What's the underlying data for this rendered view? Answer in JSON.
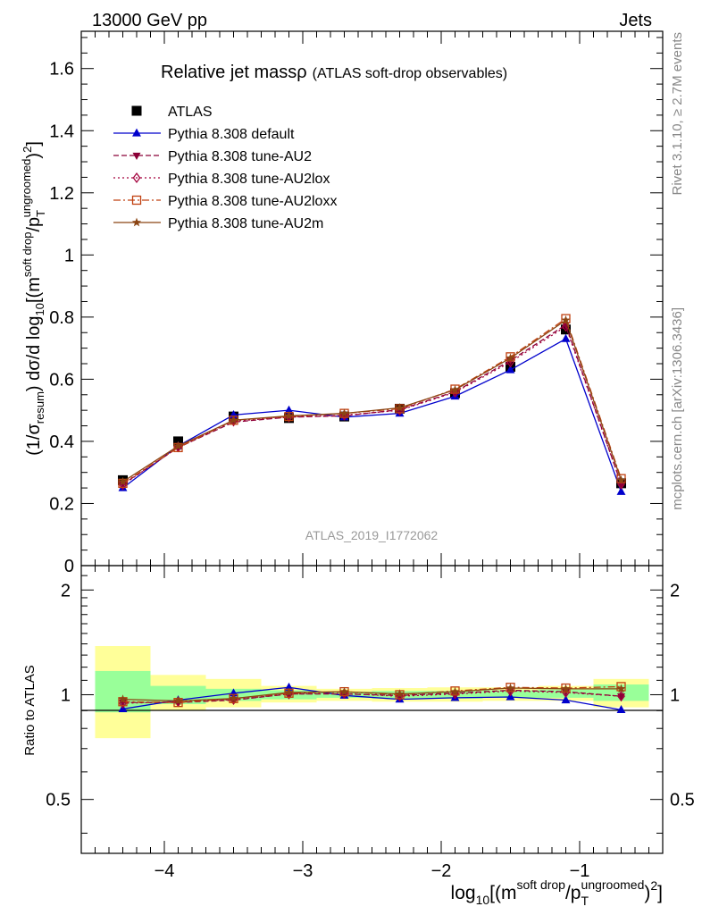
{
  "header": {
    "left": "13000 GeV pp",
    "right": "Jets"
  },
  "side_labels": {
    "rivet": "Rivet 3.1.10, ≥ 2.7M events",
    "mcplots": "mcplots.cern.ch [arXiv:1306.3436]"
  },
  "chart_data": [
    {
      "panel": "main",
      "type": "line",
      "title": "Relative jet massρ",
      "title_suffix": "(ATLAS soft-drop observables)",
      "watermark": "ATLAS_2019_I1772062",
      "ylabel": "(1/σresum) dσ/d log10[(msoft drop/pTungroomed)2]",
      "ylabel_parts": {
        "a": "(1/σ",
        "a_sub": "resum",
        "b": ") dσ/d log",
        "b_sub": "10",
        "c": "[(m",
        "c_sup": "soft drop",
        "d": "/p",
        "d_sub": "T",
        "d_sup": "ungroomed",
        "e": ")",
        "e_sup": "2",
        "f": "]"
      },
      "xlim": [
        -4.6,
        -0.4
      ],
      "ylim": [
        0,
        1.72
      ],
      "y_ticks": [
        0,
        0.2,
        0.4,
        0.6,
        0.8,
        1,
        1.2,
        1.4,
        1.6
      ],
      "y_tick_labels": [
        "0",
        "0.2",
        "0.4",
        "0.6",
        "0.8",
        "1",
        "1.2",
        "1.4",
        "1.6"
      ],
      "x": [
        -4.3,
        -3.9,
        -3.5,
        -3.1,
        -2.7,
        -2.3,
        -1.9,
        -1.5,
        -1.1,
        -0.7
      ],
      "legend_position": "top-left",
      "series": [
        {
          "name": "ATLAS",
          "color": "#000000",
          "marker": "square",
          "line": "none",
          "values": [
            0.275,
            0.4,
            0.48,
            0.475,
            0.48,
            0.505,
            0.555,
            0.64,
            0.76,
            0.265
          ]
        },
        {
          "name": "Pythia 8.308 default",
          "color": "#0000cc",
          "marker": "triangle-up",
          "line": "solid",
          "values": [
            0.25,
            0.385,
            0.485,
            0.5,
            0.478,
            0.49,
            0.545,
            0.63,
            0.73,
            0.238
          ]
        },
        {
          "name": "Pythia 8.308 tune-AU2",
          "color": "#8b0037",
          "marker": "triangle-down",
          "line": "dashed",
          "values": [
            0.262,
            0.38,
            0.462,
            0.478,
            0.482,
            0.502,
            0.56,
            0.66,
            0.775,
            0.262
          ]
        },
        {
          "name": "Pythia 8.308 tune-AU2lox",
          "color": "#a3003c",
          "marker": "diamond-open",
          "line": "dotted",
          "values": [
            0.26,
            0.382,
            0.465,
            0.478,
            0.484,
            0.5,
            0.558,
            0.655,
            0.77,
            0.262
          ]
        },
        {
          "name": "Pythia 8.308 tune-AU2loxx",
          "color": "#c04010",
          "marker": "square-open",
          "line": "dashdot",
          "values": [
            0.265,
            0.38,
            0.468,
            0.48,
            0.49,
            0.505,
            0.568,
            0.672,
            0.795,
            0.28
          ]
        },
        {
          "name": "Pythia 8.308 tune-AU2m",
          "color": "#8b4513",
          "marker": "star",
          "line": "solid",
          "values": [
            0.27,
            0.385,
            0.468,
            0.482,
            0.49,
            0.508,
            0.566,
            0.668,
            0.79,
            0.275
          ]
        }
      ]
    },
    {
      "panel": "ratio",
      "type": "line",
      "ylabel": "Ratio to ATLAS",
      "xlabel": "log10[(msoft drop/pTungroomed)2]",
      "xlabel_parts": {
        "a": "log",
        "a_sub": "10",
        "b": "[(m",
        "b_sup": "soft drop",
        "c": "/p",
        "c_sub": "T",
        "c_sup": "ungroomed",
        "d": ")",
        "d_sup": "2",
        "e": "]"
      },
      "xlim": [
        -4.6,
        -0.4
      ],
      "ylim": [
        0.35,
        2.35
      ],
      "x_ticks": [
        -4,
        -3,
        -2,
        -1
      ],
      "x_tick_labels": [
        "−4",
        "−3",
        "−2",
        "−1"
      ],
      "y_ticks": [
        0.5,
        1,
        2
      ],
      "y_tick_labels": [
        "0.5",
        "1",
        "2"
      ],
      "bins": [
        {
          "lo": -4.5,
          "hi": -4.1,
          "band1": [
            0.89,
            1.17
          ],
          "band2": [
            0.75,
            1.38
          ]
        },
        {
          "lo": -4.1,
          "hi": -3.7,
          "band1": [
            0.94,
            1.06
          ],
          "band2": [
            0.9,
            1.14
          ]
        },
        {
          "lo": -3.7,
          "hi": -3.3,
          "band1": [
            0.96,
            1.04
          ],
          "band2": [
            0.92,
            1.11
          ]
        },
        {
          "lo": -3.3,
          "hi": -2.9,
          "band1": [
            0.97,
            1.03
          ],
          "band2": [
            0.95,
            1.06
          ]
        },
        {
          "lo": -2.9,
          "hi": -2.5,
          "band1": [
            0.98,
            1.02
          ],
          "band2": [
            0.96,
            1.04
          ]
        },
        {
          "lo": -2.5,
          "hi": -2.1,
          "band1": [
            0.975,
            1.025
          ],
          "band2": [
            0.955,
            1.045
          ]
        },
        {
          "lo": -2.1,
          "hi": -1.7,
          "band1": [
            0.975,
            1.025
          ],
          "band2": [
            0.955,
            1.05
          ]
        },
        {
          "lo": -1.7,
          "hi": -1.3,
          "band1": [
            0.98,
            1.03
          ],
          "band2": [
            0.96,
            1.05
          ]
        },
        {
          "lo": -1.3,
          "hi": -0.9,
          "band1": [
            0.98,
            1.035
          ],
          "band2": [
            0.96,
            1.06
          ]
        },
        {
          "lo": -0.9,
          "hi": -0.5,
          "band1": [
            0.96,
            1.07
          ],
          "band2": [
            0.92,
            1.11
          ]
        }
      ],
      "series": [
        {
          "name": "Pythia 8.308 default",
          "values": [
            0.91,
            0.965,
            1.01,
            1.05,
            0.995,
            0.97,
            0.98,
            0.985,
            0.965,
            0.905
          ]
        },
        {
          "name": "Pythia 8.308 tune-AU2",
          "values": [
            0.95,
            0.95,
            0.965,
            1.005,
            1.005,
            0.995,
            1.01,
            1.03,
            1.02,
            0.99
          ]
        },
        {
          "name": "Pythia 8.308 tune-AU2lox",
          "values": [
            0.945,
            0.955,
            0.968,
            1.005,
            1.008,
            0.99,
            1.005,
            1.025,
            1.015,
            0.99
          ]
        },
        {
          "name": "Pythia 8.308 tune-AU2loxx",
          "values": [
            0.955,
            0.95,
            0.975,
            1.01,
            1.02,
            1.0,
            1.025,
            1.05,
            1.045,
            1.055
          ]
        },
        {
          "name": "Pythia 8.308 tune-AU2m",
          "values": [
            0.97,
            0.96,
            0.975,
            1.015,
            1.02,
            1.005,
            1.02,
            1.045,
            1.04,
            1.04
          ]
        }
      ]
    }
  ]
}
